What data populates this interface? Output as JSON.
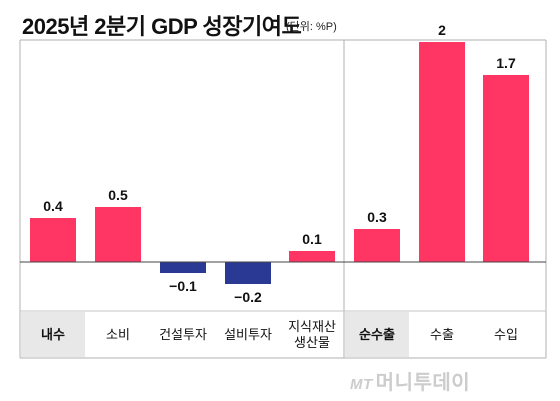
{
  "header": {
    "title": "2025년 2분기 GDP 성장기여도",
    "unit": "(단위: %P)"
  },
  "colors": {
    "positive": "#ff3564",
    "negative": "#2a3a94",
    "group_label_bg": "#e8e8e8"
  },
  "watermark": {
    "brand_prefix": "MT",
    "brand_name": "머니투데이"
  },
  "chart_data": {
    "type": "bar",
    "title": "2025년 2분기 GDP 성장기여도",
    "unit": "(단위: %P)",
    "categories": [
      "내수",
      "소비",
      "건설투자",
      "설비투자",
      "지식재산 생산물",
      "순수출",
      "수출",
      "수입"
    ],
    "category_lines": [
      [
        "내수"
      ],
      [
        "소비"
      ],
      [
        "건설투자"
      ],
      [
        "설비투자"
      ],
      [
        "지식재산",
        "생산물"
      ],
      [
        "순수출"
      ],
      [
        "수출"
      ],
      [
        "수입"
      ]
    ],
    "group_headers": [
      "내수",
      "순수출"
    ],
    "values": [
      0.4,
      0.5,
      -0.1,
      -0.2,
      0.1,
      0.3,
      2,
      1.7
    ],
    "value_labels": [
      "0.4",
      "0.5",
      "−0.1",
      "−0.2",
      "0.1",
      "0.3",
      "2",
      "1.7"
    ],
    "ylim": [
      -0.3,
      2.1
    ],
    "grid": false,
    "legend": "none"
  }
}
